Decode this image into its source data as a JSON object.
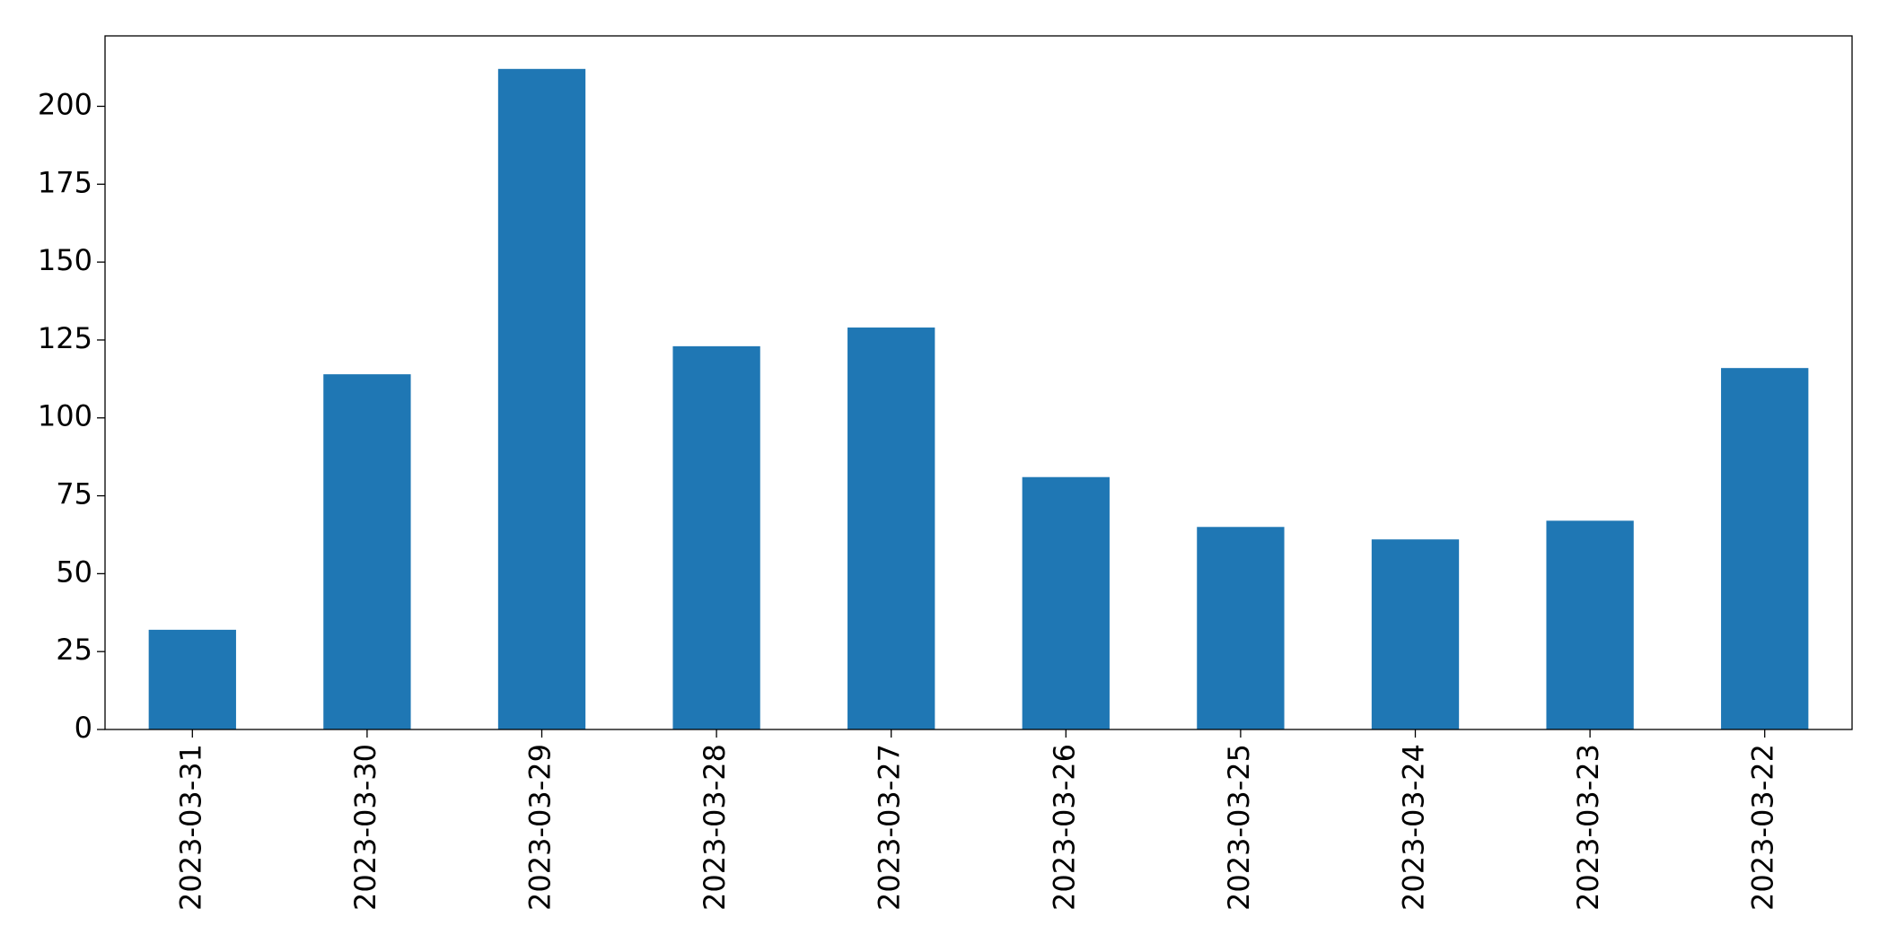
{
  "chart_data": {
    "type": "bar",
    "categories": [
      "2023-03-31",
      "2023-03-30",
      "2023-03-29",
      "2023-03-28",
      "2023-03-27",
      "2023-03-26",
      "2023-03-25",
      "2023-03-24",
      "2023-03-23",
      "2023-03-22"
    ],
    "values": [
      32,
      114,
      212,
      123,
      129,
      81,
      65,
      61,
      67,
      116
    ],
    "color": "#1f77b4",
    "ylim": [
      0,
      222.6
    ],
    "yticks": [
      0,
      25,
      50,
      75,
      100,
      125,
      150,
      175,
      200
    ],
    "grid": false
  }
}
